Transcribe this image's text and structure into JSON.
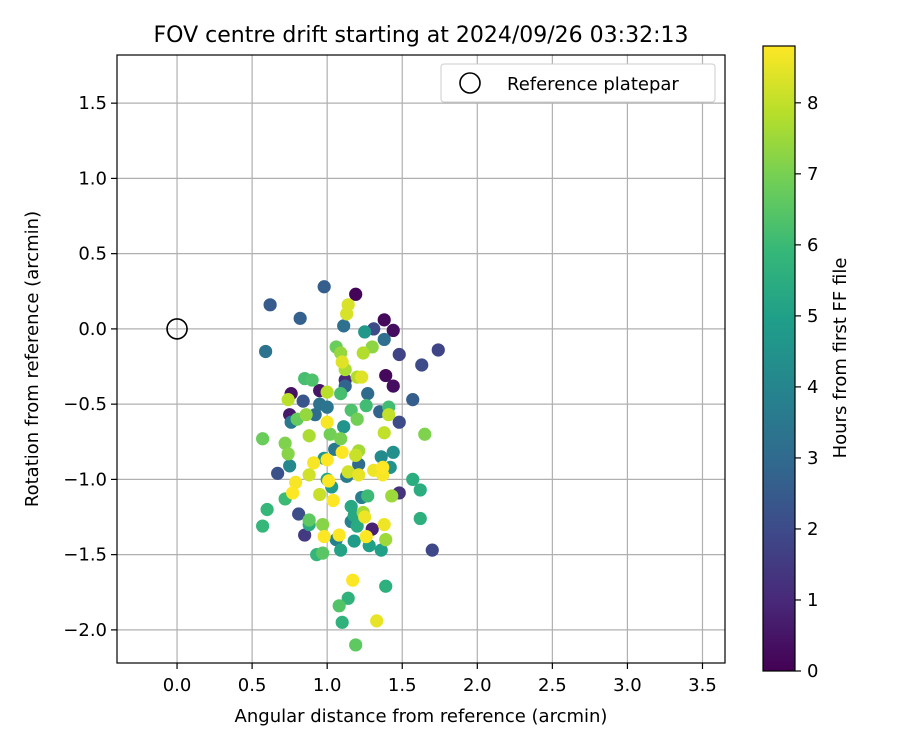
{
  "chart_data": {
    "type": "scatter",
    "title": "FOV centre drift starting at 2024/09/26 03:32:13",
    "xlabel": "Angular distance from reference (arcmin)",
    "ylabel": "Rotation from reference (arcmin)",
    "xlim": [
      -0.4,
      3.65
    ],
    "ylim": [
      -2.22,
      1.82
    ],
    "xticks": [
      0.0,
      0.5,
      1.0,
      1.5,
      2.0,
      2.5,
      3.0,
      3.5
    ],
    "xtick_labels": [
      "0.0",
      "0.5",
      "1.0",
      "1.5",
      "2.0",
      "2.5",
      "3.0",
      "3.5"
    ],
    "yticks": [
      1.5,
      1.0,
      0.5,
      0.0,
      -0.5,
      -1.0,
      -1.5,
      -2.0
    ],
    "ytick_labels": [
      "1.5",
      "1.0",
      "0.5",
      "0.0",
      "−0.5",
      "−1.0",
      "−1.5",
      "−2.0"
    ],
    "grid": true,
    "legend": {
      "placement": "top-right",
      "label": "Reference platepar"
    },
    "reference_point": {
      "x": 0.0,
      "y": 0.0
    },
    "colorbar": {
      "label": "Hours from first FF file",
      "min": 0,
      "max": 8.8,
      "ticks": [
        0,
        1,
        2,
        3,
        4,
        5,
        6,
        7,
        8
      ],
      "tick_labels": [
        "0",
        "1",
        "2",
        "3",
        "4",
        "5",
        "6",
        "7",
        "8"
      ],
      "colormap": "viridis"
    },
    "points": [
      {
        "x": 1.19,
        "y": 0.23,
        "h": 0.1
      },
      {
        "x": 1.38,
        "y": 0.06,
        "h": 0.2
      },
      {
        "x": 1.44,
        "y": -0.01,
        "h": 0.3
      },
      {
        "x": 1.39,
        "y": -0.31,
        "h": 0.2
      },
      {
        "x": 1.44,
        "y": -0.38,
        "h": 0.3
      },
      {
        "x": 0.76,
        "y": -0.43,
        "h": 0.4
      },
      {
        "x": 0.95,
        "y": -0.41,
        "h": 0.5
      },
      {
        "x": 0.75,
        "y": -0.57,
        "h": 0.6
      },
      {
        "x": 1.3,
        "y": -1.33,
        "h": 0.8
      },
      {
        "x": 1.12,
        "y": -0.34,
        "h": 1.0
      },
      {
        "x": 1.48,
        "y": -1.09,
        "h": 1.3
      },
      {
        "x": 0.85,
        "y": -1.37,
        "h": 1.5
      },
      {
        "x": 1.48,
        "y": -0.17,
        "h": 1.8
      },
      {
        "x": 1.74,
        "y": -0.14,
        "h": 1.8
      },
      {
        "x": 1.7,
        "y": -1.47,
        "h": 1.9
      },
      {
        "x": 1.63,
        "y": -0.24,
        "h": 2.0
      },
      {
        "x": 1.48,
        "y": -0.62,
        "h": 2.0
      },
      {
        "x": 1.31,
        "y": 0.0,
        "h": 2.0
      },
      {
        "x": 0.81,
        "y": -1.23,
        "h": 2.1
      },
      {
        "x": 0.67,
        "y": -0.96,
        "h": 2.2
      },
      {
        "x": 0.84,
        "y": -0.48,
        "h": 2.3
      },
      {
        "x": 0.62,
        "y": 0.16,
        "h": 2.5
      },
      {
        "x": 0.98,
        "y": 0.28,
        "h": 2.6
      },
      {
        "x": 1.57,
        "y": -0.47,
        "h": 2.6
      },
      {
        "x": 0.82,
        "y": 0.07,
        "h": 2.7
      },
      {
        "x": 1.35,
        "y": -0.55,
        "h": 2.8
      },
      {
        "x": 1.12,
        "y": -0.38,
        "h": 2.8
      },
      {
        "x": 1.27,
        "y": -0.43,
        "h": 3.0
      },
      {
        "x": 1.21,
        "y": -0.9,
        "h": 3.0
      },
      {
        "x": 0.92,
        "y": -0.57,
        "h": 3.1
      },
      {
        "x": 1.38,
        "y": -0.07,
        "h": 3.2
      },
      {
        "x": 1.11,
        "y": 0.02,
        "h": 3.2
      },
      {
        "x": 0.59,
        "y": -0.15,
        "h": 3.3
      },
      {
        "x": 0.95,
        "y": -0.5,
        "h": 3.3
      },
      {
        "x": 1.0,
        "y": -0.52,
        "h": 3.4
      },
      {
        "x": 0.76,
        "y": -0.62,
        "h": 3.5
      },
      {
        "x": 1.05,
        "y": -0.8,
        "h": 3.5
      },
      {
        "x": 1.13,
        "y": -0.98,
        "h": 3.6
      },
      {
        "x": 1.23,
        "y": -1.12,
        "h": 3.7
      },
      {
        "x": 1.06,
        "y": -1.4,
        "h": 3.8
      },
      {
        "x": 1.16,
        "y": -1.28,
        "h": 3.9
      },
      {
        "x": 0.75,
        "y": -0.91,
        "h": 4.1
      },
      {
        "x": 1.36,
        "y": -0.85,
        "h": 4.2
      },
      {
        "x": 1.44,
        "y": -0.82,
        "h": 4.4
      },
      {
        "x": 1.42,
        "y": -0.92,
        "h": 4.5
      },
      {
        "x": 1.11,
        "y": -0.65,
        "h": 4.6
      },
      {
        "x": 1.25,
        "y": -0.02,
        "h": 4.7
      },
      {
        "x": 0.98,
        "y": -0.86,
        "h": 4.7
      },
      {
        "x": 1.03,
        "y": -1.05,
        "h": 4.8
      },
      {
        "x": 1.18,
        "y": -1.41,
        "h": 4.9
      },
      {
        "x": 1.28,
        "y": -1.44,
        "h": 5.0
      },
      {
        "x": 1.36,
        "y": -1.47,
        "h": 5.0
      },
      {
        "x": 1.09,
        "y": -1.47,
        "h": 5.1
      },
      {
        "x": 1.0,
        "y": -1.0,
        "h": 5.2
      },
      {
        "x": 1.16,
        "y": -1.18,
        "h": 5.3
      },
      {
        "x": 1.18,
        "y": -1.24,
        "h": 5.3
      },
      {
        "x": 1.2,
        "y": -1.31,
        "h": 5.4
      },
      {
        "x": 0.88,
        "y": -1.3,
        "h": 5.4
      },
      {
        "x": 1.62,
        "y": -1.07,
        "h": 5.5
      },
      {
        "x": 1.57,
        "y": -1.0,
        "h": 5.5
      },
      {
        "x": 1.62,
        "y": -1.26,
        "h": 5.6
      },
      {
        "x": 1.39,
        "y": -1.71,
        "h": 5.6
      },
      {
        "x": 1.14,
        "y": -1.79,
        "h": 5.7
      },
      {
        "x": 1.1,
        "y": -1.95,
        "h": 5.7
      },
      {
        "x": 0.93,
        "y": -1.5,
        "h": 5.8
      },
      {
        "x": 0.57,
        "y": -1.31,
        "h": 5.9
      },
      {
        "x": 0.6,
        "y": -1.2,
        "h": 5.9
      },
      {
        "x": 0.72,
        "y": -1.13,
        "h": 6.0
      },
      {
        "x": 1.27,
        "y": -1.11,
        "h": 6.0
      },
      {
        "x": 1.41,
        "y": -0.52,
        "h": 6.1
      },
      {
        "x": 1.26,
        "y": -0.51,
        "h": 6.1
      },
      {
        "x": 1.09,
        "y": -0.43,
        "h": 6.2
      },
      {
        "x": 0.85,
        "y": -0.33,
        "h": 6.2
      },
      {
        "x": 0.9,
        "y": -0.34,
        "h": 6.3
      },
      {
        "x": 1.16,
        "y": -0.54,
        "h": 6.3
      },
      {
        "x": 1.08,
        "y": -1.84,
        "h": 6.4
      },
      {
        "x": 0.97,
        "y": -1.49,
        "h": 6.5
      },
      {
        "x": 1.19,
        "y": -2.1,
        "h": 6.6
      },
      {
        "x": 0.88,
        "y": -1.27,
        "h": 6.6
      },
      {
        "x": 0.8,
        "y": -0.6,
        "h": 6.7
      },
      {
        "x": 0.57,
        "y": -0.73,
        "h": 6.8
      },
      {
        "x": 1.06,
        "y": -0.12,
        "h": 6.8
      },
      {
        "x": 1.2,
        "y": -0.6,
        "h": 6.9
      },
      {
        "x": 1.02,
        "y": -0.7,
        "h": 6.9
      },
      {
        "x": 1.09,
        "y": -0.73,
        "h": 7.0
      },
      {
        "x": 1.65,
        "y": -0.7,
        "h": 7.1
      },
      {
        "x": 0.72,
        "y": -0.76,
        "h": 7.1
      },
      {
        "x": 0.74,
        "y": -0.83,
        "h": 7.2
      },
      {
        "x": 0.97,
        "y": -1.3,
        "h": 7.2
      },
      {
        "x": 1.3,
        "y": -0.12,
        "h": 7.3
      },
      {
        "x": 1.09,
        "y": -0.16,
        "h": 7.4
      },
      {
        "x": 0.86,
        "y": -0.57,
        "h": 7.4
      },
      {
        "x": 1.39,
        "y": -1.4,
        "h": 7.5
      },
      {
        "x": 1.43,
        "y": -1.11,
        "h": 7.5
      },
      {
        "x": 1.24,
        "y": -1.22,
        "h": 7.6
      },
      {
        "x": 1.21,
        "y": -0.81,
        "h": 7.6
      },
      {
        "x": 0.88,
        "y": -0.71,
        "h": 7.7
      },
      {
        "x": 1.12,
        "y": -0.27,
        "h": 7.7
      },
      {
        "x": 1.2,
        "y": -0.32,
        "h": 7.8
      },
      {
        "x": 1.24,
        "y": -0.16,
        "h": 7.8
      },
      {
        "x": 1.0,
        "y": -0.42,
        "h": 7.9
      },
      {
        "x": 0.74,
        "y": -0.47,
        "h": 7.9
      },
      {
        "x": 1.41,
        "y": -0.57,
        "h": 8.0
      },
      {
        "x": 1.38,
        "y": -0.69,
        "h": 8.0
      },
      {
        "x": 1.19,
        "y": -0.84,
        "h": 8.1
      },
      {
        "x": 0.95,
        "y": -1.1,
        "h": 8.1
      },
      {
        "x": 0.88,
        "y": -0.97,
        "h": 8.2
      },
      {
        "x": 1.14,
        "y": -0.95,
        "h": 8.2
      },
      {
        "x": 1.13,
        "y": 0.1,
        "h": 8.3
      },
      {
        "x": 1.14,
        "y": 0.16,
        "h": 8.3
      },
      {
        "x": 1.23,
        "y": -0.32,
        "h": 8.4
      },
      {
        "x": 1.1,
        "y": -0.22,
        "h": 8.4
      },
      {
        "x": 1.21,
        "y": -0.97,
        "h": 8.5
      },
      {
        "x": 1.33,
        "y": -1.94,
        "h": 8.5
      },
      {
        "x": 1.38,
        "y": -1.3,
        "h": 8.6
      },
      {
        "x": 1.25,
        "y": -1.25,
        "h": 8.6
      },
      {
        "x": 1.31,
        "y": -0.94,
        "h": 8.6
      },
      {
        "x": 1.37,
        "y": -0.97,
        "h": 8.7
      },
      {
        "x": 1.0,
        "y": -0.62,
        "h": 8.7
      },
      {
        "x": 0.91,
        "y": -0.89,
        "h": 8.7
      },
      {
        "x": 0.79,
        "y": -1.02,
        "h": 8.7
      },
      {
        "x": 0.77,
        "y": -1.09,
        "h": 8.8
      },
      {
        "x": 1.0,
        "y": -0.87,
        "h": 8.8
      },
      {
        "x": 1.01,
        "y": -1.01,
        "h": 8.8
      },
      {
        "x": 1.04,
        "y": -1.14,
        "h": 8.8
      },
      {
        "x": 1.08,
        "y": -1.37,
        "h": 8.8
      },
      {
        "x": 0.98,
        "y": -1.38,
        "h": 8.8
      },
      {
        "x": 1.17,
        "y": -1.67,
        "h": 8.8
      },
      {
        "x": 1.26,
        "y": -1.38,
        "h": 8.8
      },
      {
        "x": 1.1,
        "y": -0.82,
        "h": 8.8
      },
      {
        "x": 1.37,
        "y": -0.92,
        "h": 8.8
      }
    ]
  }
}
